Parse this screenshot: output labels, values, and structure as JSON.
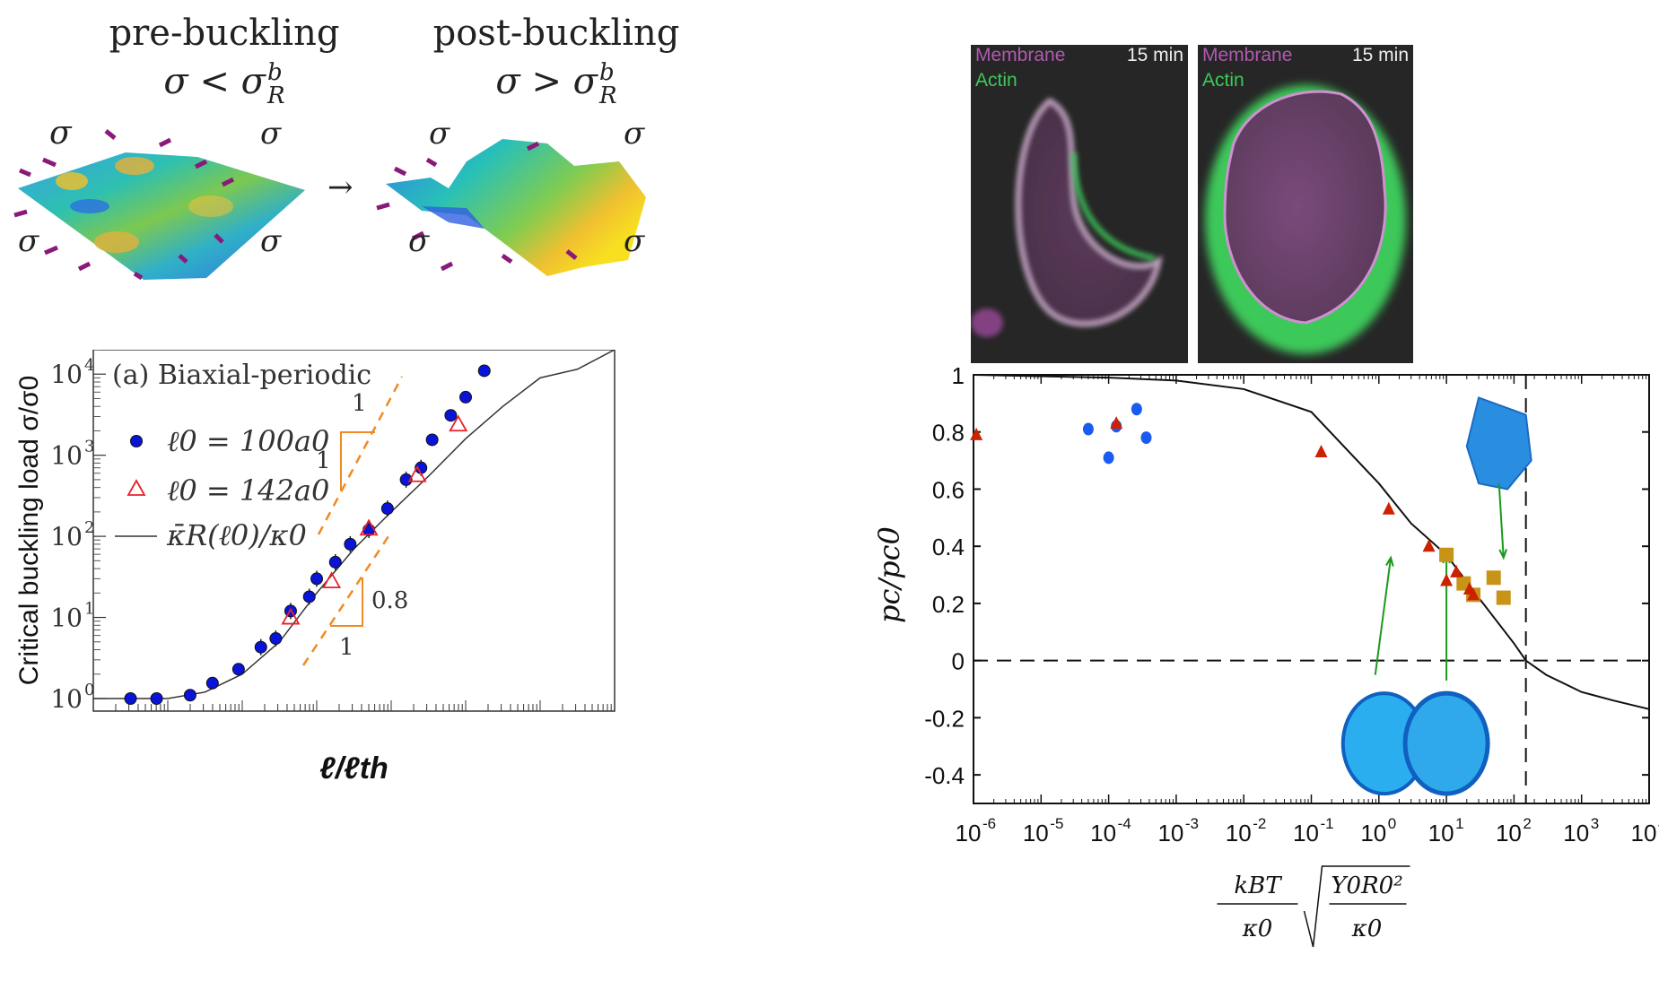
{
  "illustrations": {
    "pre": {
      "title": "pre-buckling",
      "condition": "σ < σ",
      "sup": "b",
      "sub": "R"
    },
    "post": {
      "title": "post-buckling",
      "condition": "σ > σ",
      "sup": "b",
      "sub": "R"
    },
    "sigma": "σ",
    "transition_arrow": "→"
  },
  "micrographs": [
    {
      "membrane_label": "Membrane",
      "actin_label": "Actin",
      "time_label": "15 min"
    },
    {
      "membrane_label": "Membrane",
      "actin_label": "Actin",
      "time_label": "15 min"
    }
  ],
  "colors": {
    "blue_marker": "#0a14d8",
    "red_triangle_open": "#e8202a",
    "orange_guide": "#f08a24",
    "right_blue": "#1a5cf0",
    "right_red": "#cc2200",
    "right_gold": "#c89418",
    "green_arrow": "#1a9a1a",
    "membrane_color": "#b05ab0",
    "actin_color": "#3ec85a"
  },
  "chart_data": [
    {
      "type": "scatter",
      "title": "(a) Biaxial-periodic",
      "xlabel": "ℓ/ℓth",
      "ylabel": "Critical buckling load σ/σ0",
      "yscale": "log",
      "xscale": "log",
      "ylim": [
        0.7,
        20000
      ],
      "x_decades": 7,
      "yticks": [
        "10^0",
        "10^1",
        "10^2",
        "10^3",
        "10^4"
      ],
      "ytick_values": [
        1,
        10,
        100,
        1000,
        10000
      ],
      "legend": {
        "placement": "top-left",
        "entries": [
          {
            "label": "ℓ0 = 100a0",
            "marker": "filled-circle"
          },
          {
            "label": "ℓ0 = 142a0",
            "marker": "open-triangle"
          },
          {
            "label": "κ̄R(ℓ0)/κ0",
            "marker": "line"
          }
        ]
      },
      "series": [
        {
          "name": "ℓ0 = 100a0",
          "x_decade": [
            0.5,
            0.85,
            1.3,
            1.6,
            1.95,
            2.25,
            2.45,
            2.65,
            2.9,
            3.0,
            3.25,
            3.45,
            3.7,
            3.95,
            4.2,
            4.4,
            4.55,
            4.8,
            5.0,
            5.25,
            5.45,
            5.65,
            5.9
          ],
          "values": [
            1.0,
            1.0,
            1.1,
            1.55,
            2.3,
            4.3,
            5.5,
            12,
            18,
            30,
            48,
            80,
            120,
            220,
            500,
            700,
            1550,
            3100,
            5200,
            11000,
            0,
            0,
            0
          ],
          "error_bars": true
        },
        {
          "name": "ℓ0 = 142a0",
          "x_decade": [
            2.65,
            3.2,
            3.7,
            4.35,
            4.9
          ],
          "values": [
            10,
            28,
            125,
            570,
            2400
          ]
        },
        {
          "name": "κ̄R(ℓ0)/κ0",
          "type": "line",
          "x_decade": [
            0,
            1,
            1.5,
            2,
            2.5,
            3,
            3.5,
            4,
            4.5,
            5,
            5.5,
            6,
            6.5,
            7
          ],
          "values": [
            1.0,
            1.0,
            1.2,
            2.0,
            5.0,
            20,
            70,
            200,
            550,
            1600,
            4000,
            9000,
            11500,
            20000
          ]
        }
      ],
      "slope_annotations": [
        {
          "rise": "1",
          "run": "1",
          "position": "upper"
        },
        {
          "rise": "0.8",
          "run": "1",
          "position": "lower"
        }
      ]
    },
    {
      "type": "scatter",
      "title": "",
      "xlabel": "kBT/κ0 · sqrt(Y0 R0² / κ0)",
      "ylabel": "pc/pc0",
      "xscale": "log",
      "xlim": [
        1e-06,
        10000.0
      ],
      "ylim": [
        -0.5,
        1.0
      ],
      "xticks": [
        "10-6",
        "10-5",
        "10-4",
        "10-3",
        "10-2",
        "10-1",
        "100",
        "101",
        "102",
        "103",
        "104"
      ],
      "xtick_exponents": [
        -6,
        -5,
        -4,
        -3,
        -2,
        -1,
        0,
        1,
        2,
        3,
        4
      ],
      "yticks": [
        "1",
        "0.8",
        "0.6",
        "0.4",
        "0.2",
        "0",
        "-0.2",
        "-0.4"
      ],
      "ytick_values": [
        1,
        0.8,
        0.6,
        0.4,
        0.2,
        0,
        -0.2,
        -0.4
      ],
      "reference_lines": {
        "horizontal_y": 0,
        "vertical_x": 150
      },
      "series": [
        {
          "name": "blue circles",
          "marker": "circle",
          "x": [
            5e-05,
            0.0001,
            0.00013,
            0.00026,
            0.00036
          ],
          "values": [
            0.81,
            0.71,
            0.82,
            0.88,
            0.78
          ]
        },
        {
          "name": "red triangles",
          "marker": "triangle",
          "x": [
            1.1e-06,
            0.00013,
            0.14,
            1.4,
            5.5,
            10,
            14,
            22,
            25
          ],
          "values": [
            0.79,
            0.83,
            0.73,
            0.53,
            0.4,
            0.28,
            0.31,
            0.25,
            0.23
          ]
        },
        {
          "name": "gold squares",
          "marker": "square",
          "x": [
            10,
            18,
            25,
            50,
            70
          ],
          "values": [
            0.37,
            0.27,
            0.23,
            0.29,
            0.22
          ]
        },
        {
          "name": "theory curve",
          "type": "line",
          "x": [
            1e-06,
            0.0001,
            0.001,
            0.01,
            0.1,
            1,
            3,
            10,
            30,
            100,
            150,
            300,
            1000,
            3000,
            10000
          ],
          "values": [
            1.0,
            0.99,
            0.98,
            0.95,
            0.87,
            0.62,
            0.48,
            0.37,
            0.22,
            0.06,
            0.0,
            -0.05,
            -0.11,
            -0.14,
            -0.17
          ]
        }
      ],
      "annotations": [
        {
          "type": "inset-shape",
          "description": "rough faceted shell",
          "points_to_x": 70
        },
        {
          "type": "inset-shape",
          "description": "smooth sphere",
          "points_to_x": 1.5
        },
        {
          "type": "inset-shape",
          "description": "wrinkled sphere",
          "points_to_x": 10
        }
      ]
    }
  ]
}
